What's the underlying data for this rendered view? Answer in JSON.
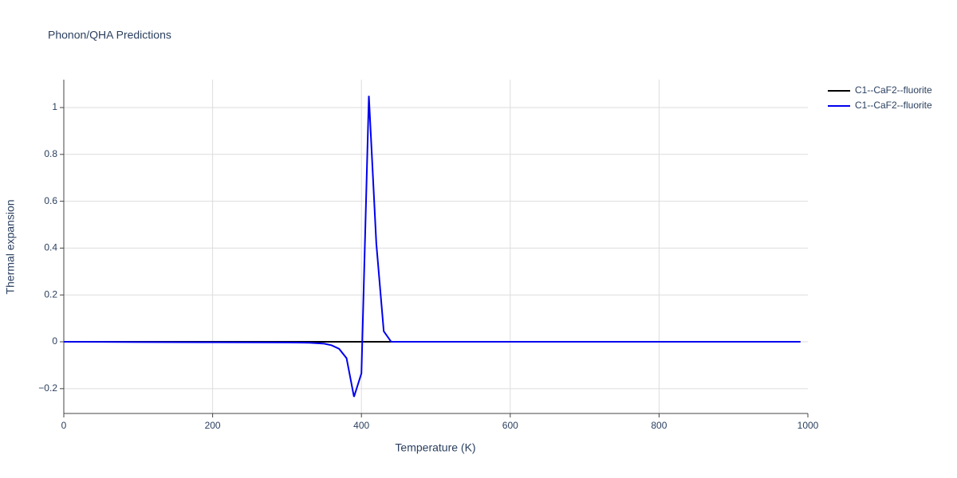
{
  "chart_data": {
    "type": "line",
    "title": "Phonon/QHA Predictions",
    "x_label": "Temperature (K)",
    "y_label": "Thermal expansion",
    "x": [
      0,
      100,
      200,
      300,
      330,
      350,
      360,
      370,
      380,
      390,
      400,
      410,
      420,
      430,
      440,
      500,
      600,
      700,
      800,
      900,
      990
    ],
    "series": [
      {
        "name": "C1--CaF2--fluorite",
        "color": "#000000",
        "values": [
          0,
          0,
          0,
          0,
          0,
          0,
          0,
          0,
          0,
          0,
          0,
          0,
          0,
          0,
          0,
          0,
          0,
          0,
          0,
          0,
          0
        ]
      },
      {
        "name": "C1--CaF2--fluorite",
        "color": "#0000ee",
        "values": [
          0,
          -0.001,
          -0.002,
          -0.003,
          -0.004,
          -0.008,
          -0.015,
          -0.03,
          -0.07,
          -0.235,
          -0.135,
          1.05,
          0.42,
          0.045,
          0,
          0,
          0,
          0,
          0,
          0,
          0
        ]
      }
    ],
    "xlim": [
      0,
      1000
    ],
    "xticks": [
      0,
      200,
      400,
      600,
      800,
      1000
    ],
    "ylim": [
      -0.306,
      1.119
    ],
    "yticks": [
      {
        "value": -0.2,
        "label": "−0.2"
      },
      0,
      0.2,
      0.4,
      0.6,
      0.8,
      1
    ],
    "grid": true,
    "legend": "top-right"
  }
}
